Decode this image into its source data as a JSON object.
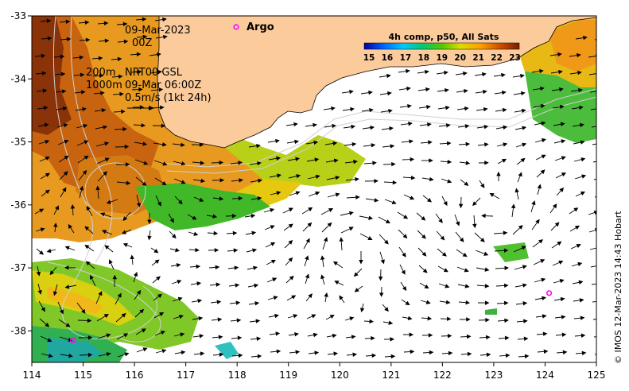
{
  "chart_data": {
    "type": "heatmap",
    "title": "4h comp, p50, All Sats",
    "colorbar": {
      "ticks": [
        "15",
        "16",
        "17",
        "18",
        "19",
        "20",
        "21",
        "22",
        "23"
      ],
      "range": [
        15,
        23.5
      ],
      "placement": "top-right"
    },
    "x_ticks": [
      "114",
      "115",
      "116",
      "117",
      "118",
      "119",
      "120",
      "121",
      "122",
      "123",
      "124",
      "125"
    ],
    "y_ticks": [
      "-33",
      "-34",
      "-35",
      "-36",
      "-37",
      "-38"
    ],
    "xlim": [
      114,
      125
    ],
    "ylim": [
      -38.5,
      -33
    ]
  },
  "annotations": {
    "date": "09-Mar-2023",
    "time": "00Z",
    "contour_200": "200m",
    "contour_1000": "1000m",
    "product": "NRT00 GSL",
    "product_time": "09-Mar 06:00Z",
    "scale": "0.5m/s (1kt 24h)"
  },
  "argo": {
    "label": "Argo",
    "floats": [
      {
        "lon": 114.8,
        "lat": -38.15
      },
      {
        "lon": 124.08,
        "lat": -37.4
      }
    ]
  },
  "credit": "© IMOS 12-Mar-2023 14:43 Hobart",
  "colors": {
    "land": "#FCCB9C",
    "argo": "#FF00FF",
    "contour": "#CCCCCC"
  }
}
